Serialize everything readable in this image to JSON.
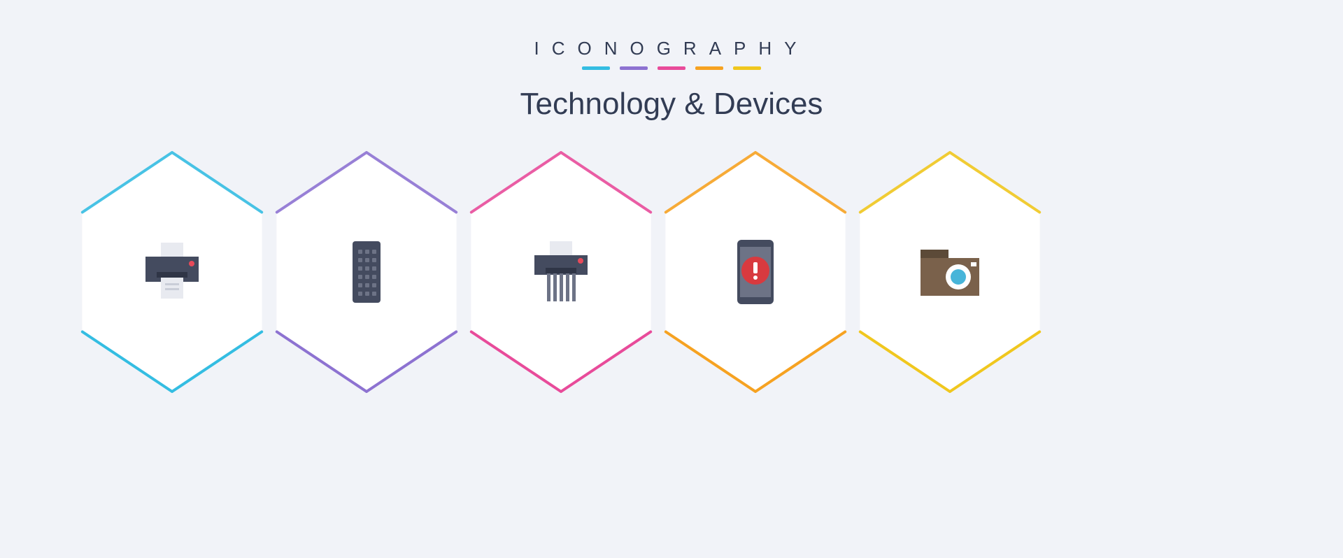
{
  "header": {
    "brand": "ICONOGRAPHY",
    "subtitle": "Technology & Devices"
  },
  "palette": {
    "background": "#f1f3f8",
    "text": "#323c54",
    "accents": [
      "#34bde2",
      "#8d72d1",
      "#e84b9a",
      "#f6a221",
      "#f0c71e"
    ]
  },
  "hexRow": {
    "hexWidth": 300,
    "hexHeight": 346,
    "spacing": 278,
    "startX": 96,
    "baseY": 0,
    "fill": "#ffffff",
    "strokeWidth": 4
  },
  "icons": [
    {
      "name": "printer-icon",
      "accent": "#34bde2",
      "colors": {
        "body": "#444b5f",
        "paper": "#e8eaf0",
        "led": "#e84a5a"
      }
    },
    {
      "name": "remote-icon",
      "accent": "#8d72d1",
      "colors": {
        "body": "#444b5f",
        "button": "#6d7386"
      }
    },
    {
      "name": "shredder-icon",
      "accent": "#e84b9a",
      "colors": {
        "body": "#444b5f",
        "paper": "#e8eaf0",
        "led": "#e84a5a",
        "strips": "#6d7386"
      }
    },
    {
      "name": "phone-alert-icon",
      "accent": "#f6a221",
      "colors": {
        "body": "#444b5f",
        "screen": "#6d7386",
        "circle": "#d83a3f",
        "mark": "#ffffff"
      }
    },
    {
      "name": "camera-icon",
      "accent": "#f0c71e",
      "colors": {
        "body": "#7a614b",
        "top": "#5c4a38",
        "lensOuter": "#ffffff",
        "lensInner": "#48b5d9",
        "flash": "#ffffff"
      }
    }
  ]
}
